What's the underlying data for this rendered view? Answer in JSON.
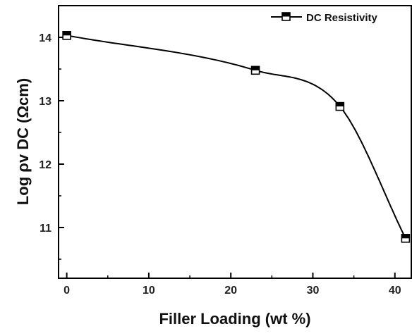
{
  "chart_data": {
    "type": "line",
    "xlabel": "Filler Loading (wt %)",
    "ylabel": "Log ρv DC (Ωcm)",
    "xlim": [
      -1,
      42
    ],
    "ylim": [
      10.2,
      14.5
    ],
    "xticks": [
      0,
      10,
      20,
      30,
      40
    ],
    "yticks": [
      11,
      12,
      13,
      14
    ],
    "grid": false,
    "legend_position": "top-right",
    "series": [
      {
        "name": "DC Resistivity",
        "marker": "half-filled-square",
        "color": "#000000",
        "x": [
          0,
          23,
          33.3,
          41.3
        ],
        "y": [
          14.03,
          13.48,
          12.91,
          10.83
        ]
      }
    ]
  }
}
